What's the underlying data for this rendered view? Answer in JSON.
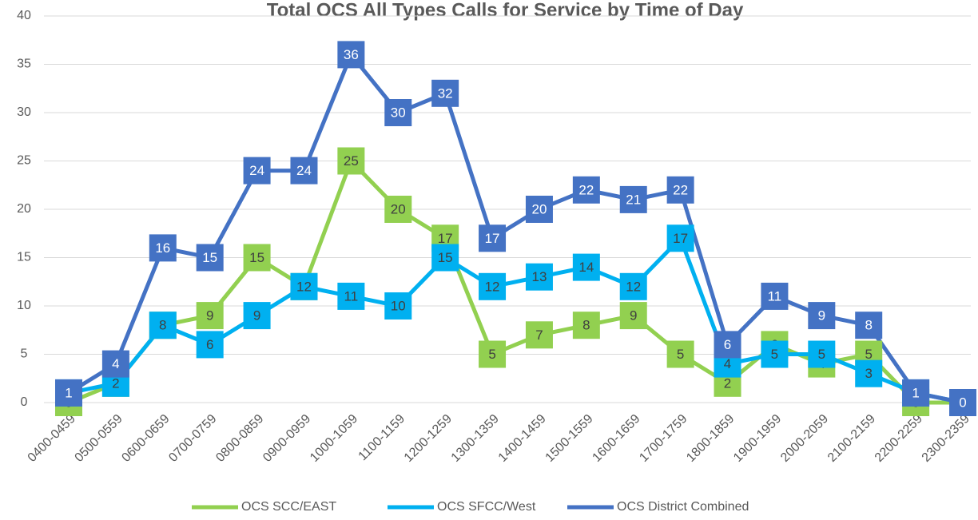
{
  "chart_data": {
    "type": "line",
    "title": "Total OCS All Types Calls for Service by Time of Day",
    "categories": [
      "0400-0459",
      "0500-0559",
      "0600-0659",
      "0700-0759",
      "0800-0859",
      "0900-0959",
      "1000-1059",
      "1100-1159",
      "1200-1259",
      "1300-1359",
      "1400-1459",
      "1500-1559",
      "1600-1659",
      "1700-1759",
      "1800-1859",
      "1900-1959",
      "2000-2059",
      "2100-2159",
      "2200-2259",
      "2300-2359"
    ],
    "series": [
      {
        "name": "OCS SCC/EAST",
        "color": "#92d050",
        "label_color": "#404040",
        "values": [
          0,
          2,
          8,
          9,
          15,
          12,
          25,
          20,
          17,
          5,
          7,
          8,
          9,
          5,
          2,
          6,
          4,
          5,
          0,
          0
        ]
      },
      {
        "name": "OCS SFCC/West",
        "color": "#00b0f0",
        "label_color": "#404040",
        "values": [
          1,
          2,
          8,
          6,
          9,
          12,
          11,
          10,
          15,
          12,
          13,
          14,
          12,
          17,
          4,
          5,
          5,
          3,
          1,
          0
        ]
      },
      {
        "name": "OCS District Combined",
        "color": "#4472c4",
        "label_color": "#ffffff",
        "values": [
          1,
          4,
          16,
          15,
          24,
          24,
          36,
          30,
          32,
          17,
          20,
          22,
          21,
          22,
          6,
          11,
          9,
          8,
          1,
          0
        ]
      }
    ],
    "ylim": [
      0,
      40
    ],
    "yticks": [
      0,
      5,
      10,
      15,
      20,
      25,
      30,
      35,
      40
    ],
    "grid": true,
    "legend": "bottom"
  }
}
